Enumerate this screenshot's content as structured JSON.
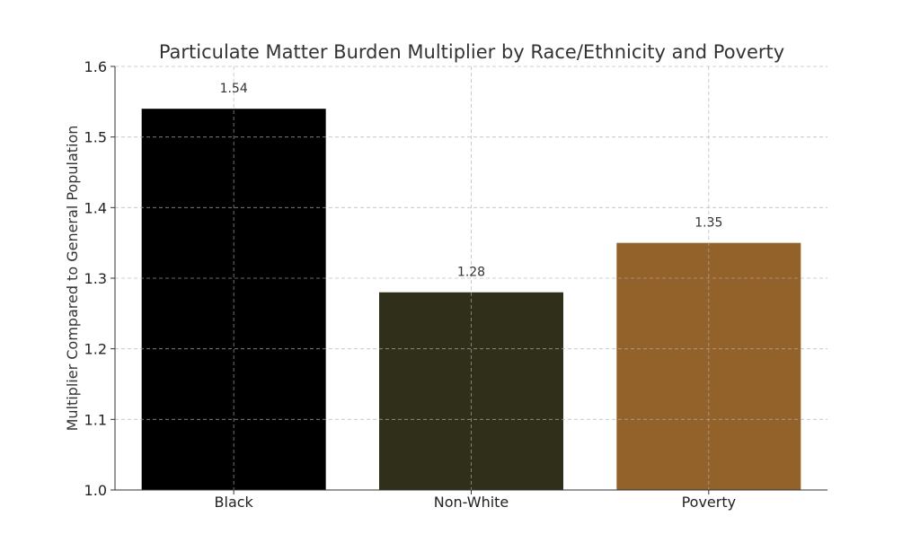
{
  "chart_data": {
    "type": "bar",
    "title": "Particulate Matter Burden Multiplier by Race/Ethnicity and Poverty",
    "xlabel": "",
    "ylabel": "Multiplier Compared to General Population",
    "categories": [
      "Black",
      "Non-White",
      "Poverty"
    ],
    "values": [
      1.54,
      1.28,
      1.35
    ],
    "data_labels": [
      "1.54",
      "1.28",
      "1.35"
    ],
    "colors": [
      "#000000",
      "#302f1a",
      "#93622a"
    ],
    "ylim": [
      1.0,
      1.6
    ],
    "yticks": [
      "1.0",
      "1.1",
      "1.2",
      "1.3",
      "1.4",
      "1.5",
      "1.6"
    ],
    "grid": true
  }
}
